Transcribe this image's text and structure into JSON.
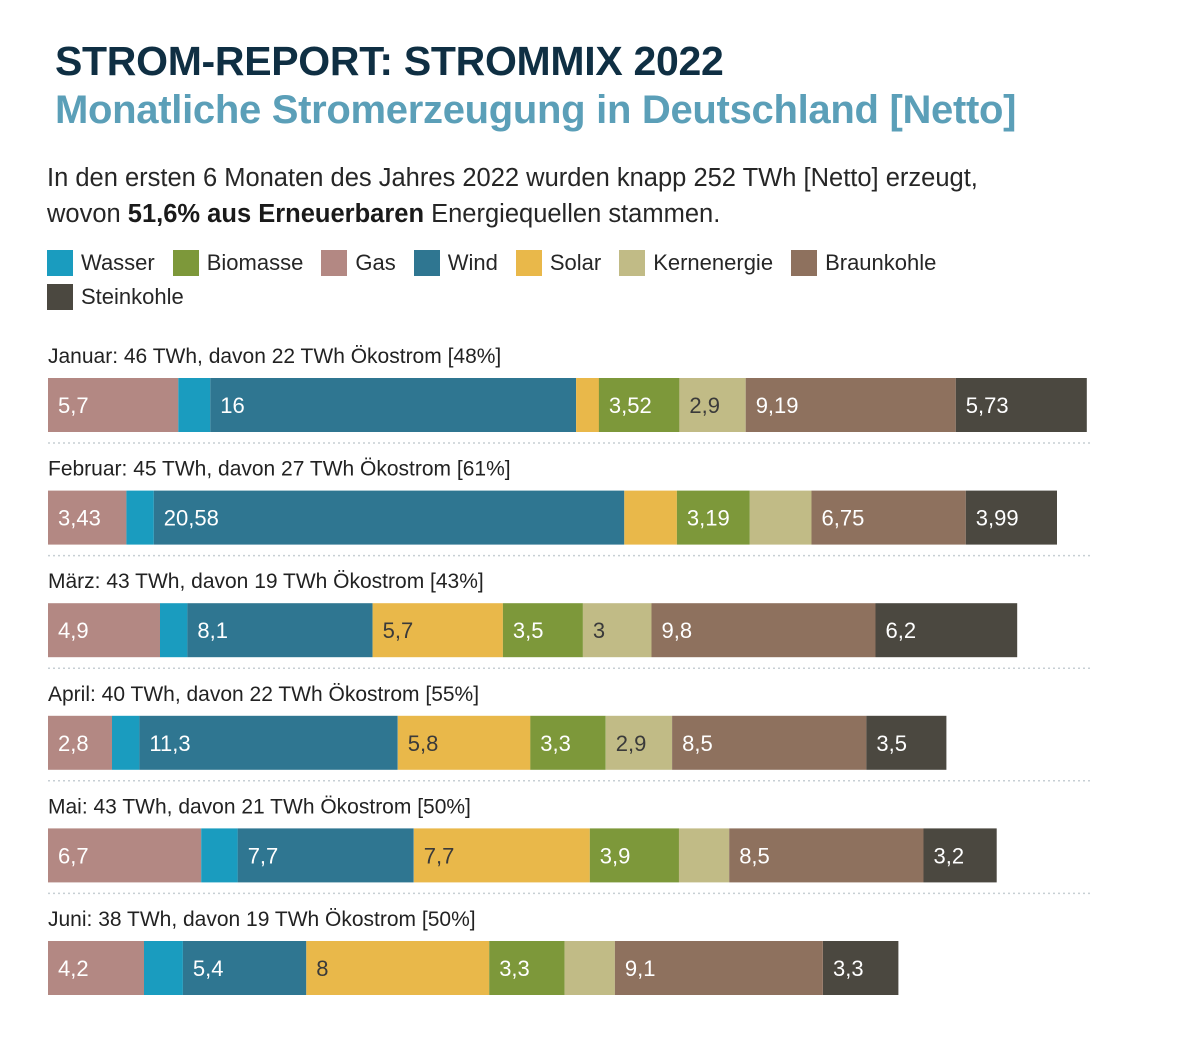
{
  "header": {
    "title": "STROM-REPORT: STROMMIX 2022",
    "subtitle": "Monatliche Stromerzeugung in Deutschland [Netto]"
  },
  "intro": {
    "line1": "In den ersten 6 Monaten des Jahres 2022 wurden knapp 252 TWh [Netto] erzeugt,",
    "line2_pre": "wovon ",
    "line2_bold": "51,6% aus Erneuerbaren",
    "line2_post": " Energiequellen stammen."
  },
  "legend": [
    {
      "name": "Wasser",
      "color": "#1a9cbf"
    },
    {
      "name": "Biomasse",
      "color": "#7d983a"
    },
    {
      "name": "Gas",
      "color": "#b38883"
    },
    {
      "name": "Wind",
      "color": "#2f7691"
    },
    {
      "name": "Solar",
      "color": "#e9b84a"
    },
    {
      "name": "Kernenergie",
      "color": "#c1bb86"
    },
    {
      "name": "Braunkohle",
      "color": "#8e715e"
    },
    {
      "name": "Steinkohle",
      "color": "#4b4840"
    }
  ],
  "chart_data": {
    "type": "bar",
    "orientation": "horizontal",
    "stacked": true,
    "unit": "TWh",
    "segment_order": [
      "Gas",
      "Wasser",
      "Wind",
      "Solar",
      "Biomasse",
      "Kernenergie",
      "Braunkohle",
      "Steinkohle"
    ],
    "rows": [
      {
        "label": "Januar: 46 TWh, davon 22 TWh Ökostrom [48%]",
        "segments": [
          {
            "series": "Gas",
            "value": 5.7,
            "label": "5,7"
          },
          {
            "series": "Wasser",
            "value": 1.4,
            "label": ""
          },
          {
            "series": "Wind",
            "value": 16,
            "label": "16"
          },
          {
            "series": "Solar",
            "value": 1.0,
            "label": ""
          },
          {
            "series": "Biomasse",
            "value": 3.52,
            "label": "3,52"
          },
          {
            "series": "Kernenergie",
            "value": 2.9,
            "label": "2,9"
          },
          {
            "series": "Braunkohle",
            "value": 9.19,
            "label": "9,19"
          },
          {
            "series": "Steinkohle",
            "value": 5.73,
            "label": "5,73"
          }
        ]
      },
      {
        "label": "Februar: 45 TWh, davon 27 TWh Ökostrom [61%]",
        "segments": [
          {
            "series": "Gas",
            "value": 3.43,
            "label": "3,43"
          },
          {
            "series": "Wasser",
            "value": 1.2,
            "label": ""
          },
          {
            "series": "Wind",
            "value": 20.58,
            "label": "20,58"
          },
          {
            "series": "Solar",
            "value": 2.3,
            "label": ""
          },
          {
            "series": "Biomasse",
            "value": 3.19,
            "label": "3,19"
          },
          {
            "series": "Kernenergie",
            "value": 2.7,
            "label": ""
          },
          {
            "series": "Braunkohle",
            "value": 6.75,
            "label": "6,75"
          },
          {
            "series": "Steinkohle",
            "value": 3.99,
            "label": "3,99"
          }
        ]
      },
      {
        "label": "März: 43 TWh, davon 19 TWh Ökostrom [43%]",
        "segments": [
          {
            "series": "Gas",
            "value": 4.9,
            "label": "4,9"
          },
          {
            "series": "Wasser",
            "value": 1.2,
            "label": ""
          },
          {
            "series": "Wind",
            "value": 8.1,
            "label": "8,1"
          },
          {
            "series": "Solar",
            "value": 5.7,
            "label": "5,7"
          },
          {
            "series": "Biomasse",
            "value": 3.5,
            "label": "3,5"
          },
          {
            "series": "Kernenergie",
            "value": 3,
            "label": "3"
          },
          {
            "series": "Braunkohle",
            "value": 9.8,
            "label": "9,8"
          },
          {
            "series": "Steinkohle",
            "value": 6.2,
            "label": "6,2"
          }
        ]
      },
      {
        "label": "April: 40 TWh, davon 22 TWh Ökostrom [55%]",
        "segments": [
          {
            "series": "Gas",
            "value": 2.8,
            "label": "2,8"
          },
          {
            "series": "Wasser",
            "value": 1.2,
            "label": ""
          },
          {
            "series": "Wind",
            "value": 11.3,
            "label": "11,3"
          },
          {
            "series": "Solar",
            "value": 5.8,
            "label": "5,8"
          },
          {
            "series": "Biomasse",
            "value": 3.3,
            "label": "3,3"
          },
          {
            "series": "Kernenergie",
            "value": 2.9,
            "label": "2,9"
          },
          {
            "series": "Braunkohle",
            "value": 8.5,
            "label": "8,5"
          },
          {
            "series": "Steinkohle",
            "value": 3.5,
            "label": "3,5"
          }
        ]
      },
      {
        "label": "Mai: 43 TWh, davon 21 TWh Ökostrom [50%]",
        "segments": [
          {
            "series": "Gas",
            "value": 6.7,
            "label": "6,7"
          },
          {
            "series": "Wasser",
            "value": 1.6,
            "label": ""
          },
          {
            "series": "Wind",
            "value": 7.7,
            "label": "7,7"
          },
          {
            "series": "Solar",
            "value": 7.7,
            "label": "7,7"
          },
          {
            "series": "Biomasse",
            "value": 3.9,
            "label": "3,9"
          },
          {
            "series": "Kernenergie",
            "value": 2.2,
            "label": ""
          },
          {
            "series": "Braunkohle",
            "value": 8.5,
            "label": "8,5"
          },
          {
            "series": "Steinkohle",
            "value": 3.2,
            "label": "3,2"
          }
        ]
      },
      {
        "label": "Juni: 38 TWh, davon 19 TWh Ökostrom [50%]",
        "segments": [
          {
            "series": "Gas",
            "value": 4.2,
            "label": "4,2"
          },
          {
            "series": "Wasser",
            "value": 1.7,
            "label": ""
          },
          {
            "series": "Wind",
            "value": 5.4,
            "label": "5,4"
          },
          {
            "series": "Solar",
            "value": 8,
            "label": "8"
          },
          {
            "series": "Biomasse",
            "value": 3.3,
            "label": "3,3"
          },
          {
            "series": "Kernenergie",
            "value": 2.2,
            "label": ""
          },
          {
            "series": "Braunkohle",
            "value": 9.1,
            "label": "9,1"
          },
          {
            "series": "Steinkohle",
            "value": 3.3,
            "label": "3,3"
          }
        ]
      }
    ]
  }
}
